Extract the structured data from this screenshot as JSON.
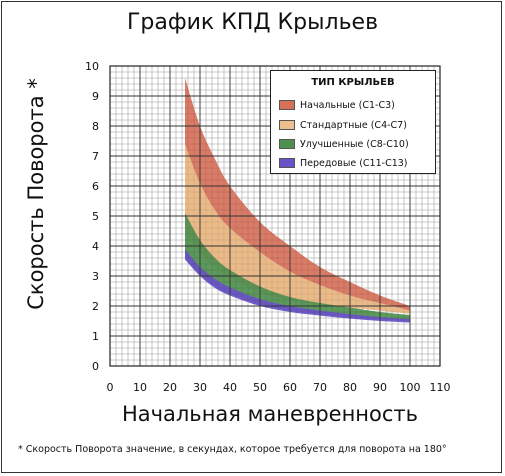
{
  "chart_data": {
    "type": "area",
    "title": "График КПД Крыльев",
    "xlabel": "Начальная маневренность",
    "ylabel": "Скорость Поворота *",
    "xlim": [
      0,
      110
    ],
    "ylim": [
      0,
      10
    ],
    "x_ticks": [
      "0",
      "10",
      "20",
      "30",
      "40",
      "50",
      "60",
      "70",
      "80",
      "90",
      "100",
      "110"
    ],
    "y_ticks": [
      "0",
      "1",
      "2",
      "3",
      "4",
      "5",
      "6",
      "7",
      "8",
      "9",
      "10"
    ],
    "grid": true,
    "legend_position": "top-right",
    "legend_title": "ТИП КРЫЛЬЕВ",
    "x": [
      25,
      30,
      35,
      40,
      50,
      60,
      70,
      80,
      90,
      100
    ],
    "series": [
      {
        "name": "Начальные (C1-C3)",
        "color": "#d5705a",
        "lower": [
          4.5,
          3.8,
          3.3,
          2.95,
          2.45,
          2.2,
          2.05,
          1.95,
          1.85,
          1.75
        ],
        "upper": [
          9.6,
          8.0,
          6.9,
          6.0,
          4.8,
          4.0,
          3.3,
          2.8,
          2.35,
          2.0
        ]
      },
      {
        "name": "Стандартные (C4-C7)",
        "color": "#ecbf8c",
        "lower": [
          4.5,
          3.8,
          3.3,
          2.95,
          2.45,
          2.2,
          2.05,
          1.95,
          1.85,
          1.75
        ],
        "upper": [
          7.4,
          6.1,
          5.2,
          4.6,
          3.8,
          3.15,
          2.7,
          2.35,
          2.1,
          1.85
        ]
      },
      {
        "name": "Улучшенные (C8-C10)",
        "color": "#4f8f4f",
        "lower": [
          3.6,
          3.05,
          2.65,
          2.4,
          2.05,
          1.85,
          1.72,
          1.62,
          1.55,
          1.5
        ],
        "upper": [
          5.1,
          4.2,
          3.6,
          3.2,
          2.65,
          2.3,
          2.1,
          1.95,
          1.8,
          1.7
        ]
      },
      {
        "name": "Передовые (C11-C13)",
        "color": "#6a52c9",
        "lower": [
          3.55,
          3.0,
          2.6,
          2.35,
          2.0,
          1.8,
          1.68,
          1.58,
          1.5,
          1.45
        ],
        "upper": [
          3.9,
          3.3,
          2.9,
          2.62,
          2.23,
          2.0,
          1.85,
          1.73,
          1.63,
          1.56
        ]
      }
    ],
    "footnote": "* Скорость Поворота значение, в секундах, которое требуется для поворота на 180°"
  }
}
